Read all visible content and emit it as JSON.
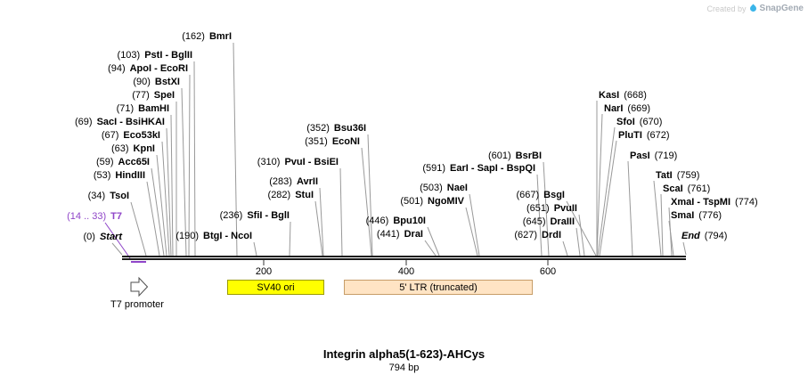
{
  "watermark": {
    "created_by": "Created by",
    "brand": "SnapGene"
  },
  "footer": {
    "title": "Integrin alpha5(1-623)-AHCys",
    "subtitle": "794 bp"
  },
  "ruler": {
    "ticks": [
      "200",
      "400",
      "600"
    ]
  },
  "features": {
    "t7_promoter": {
      "label": "T7 promoter",
      "fill": "#ffffff"
    },
    "sv40_ori": {
      "label": "SV40 ori",
      "fill": "#ffff00"
    },
    "ltr": {
      "label": "5' LTR (truncated)",
      "fill": "#ffe4c4"
    }
  },
  "colors": {
    "t7_annotation": "#8f45c8",
    "connector_line": "#999999"
  },
  "sites": [
    {
      "pos": "(162)",
      "name": "BmrI"
    },
    {
      "pos": "(103)",
      "name": "PstI - BglII"
    },
    {
      "pos": "(94)",
      "name": "ApoI - EcoRI"
    },
    {
      "pos": "(90)",
      "name": "BstXI"
    },
    {
      "pos": "(77)",
      "name": "SpeI"
    },
    {
      "pos": "(71)",
      "name": "BamHI"
    },
    {
      "pos": "(69)",
      "name": "SacI - BsiHKAI"
    },
    {
      "pos": "(67)",
      "name": "Eco53kI"
    },
    {
      "pos": "(63)",
      "name": "KpnI"
    },
    {
      "pos": "(59)",
      "name": "Acc65I"
    },
    {
      "pos": "(53)",
      "name": "HindIII"
    },
    {
      "pos": "(34)",
      "name": "TsoI"
    },
    {
      "pos": "(14 .. 33)",
      "name": "T7",
      "cls": "t7"
    },
    {
      "pos": "(0)",
      "name": "Start",
      "cls": "terminus"
    },
    {
      "pos": "(236)",
      "name": "SfiI - BglI"
    },
    {
      "pos": "(190)",
      "name": "BtgI - NcoI"
    },
    {
      "pos": "(282)",
      "name": "StuI"
    },
    {
      "pos": "(283)",
      "name": "AvrII"
    },
    {
      "pos": "(310)",
      "name": "PvuI - BsiEI"
    },
    {
      "pos": "(351)",
      "name": "EcoNI"
    },
    {
      "pos": "(352)",
      "name": "Bsu36I"
    },
    {
      "pos": "(441)",
      "name": "DraI"
    },
    {
      "pos": "(446)",
      "name": "Bpu10I"
    },
    {
      "pos": "(501)",
      "name": "NgoMIV"
    },
    {
      "pos": "(503)",
      "name": "NaeI"
    },
    {
      "pos": "(591)",
      "name": "EarI - SapI - BspQI"
    },
    {
      "pos": "(601)",
      "name": "BsrBI"
    },
    {
      "pos": "(627)",
      "name": "DrdI"
    },
    {
      "pos": "(645)",
      "name": "DraIII"
    },
    {
      "pos": "(651)",
      "name": "PvuII"
    },
    {
      "pos": "(667)",
      "name": "BsgI"
    },
    {
      "name": "KasI",
      "pos": "(668)",
      "order": "name-first"
    },
    {
      "name": "NarI",
      "pos": "(669)",
      "order": "name-first"
    },
    {
      "name": "SfoI",
      "pos": "(670)",
      "order": "name-first"
    },
    {
      "name": "PluTI",
      "pos": "(672)",
      "order": "name-first"
    },
    {
      "name": "PasI",
      "pos": "(719)",
      "order": "name-first"
    },
    {
      "name": "TatI",
      "pos": "(759)",
      "order": "name-first"
    },
    {
      "name": "ScaI",
      "pos": "(761)",
      "order": "name-first"
    },
    {
      "name": "XmaI - TspMI",
      "pos": "(774)",
      "order": "name-first"
    },
    {
      "name": "SmaI",
      "pos": "(776)",
      "order": "name-first"
    },
    {
      "name": "End",
      "pos": "(794)",
      "order": "name-first",
      "cls": "terminus"
    }
  ]
}
